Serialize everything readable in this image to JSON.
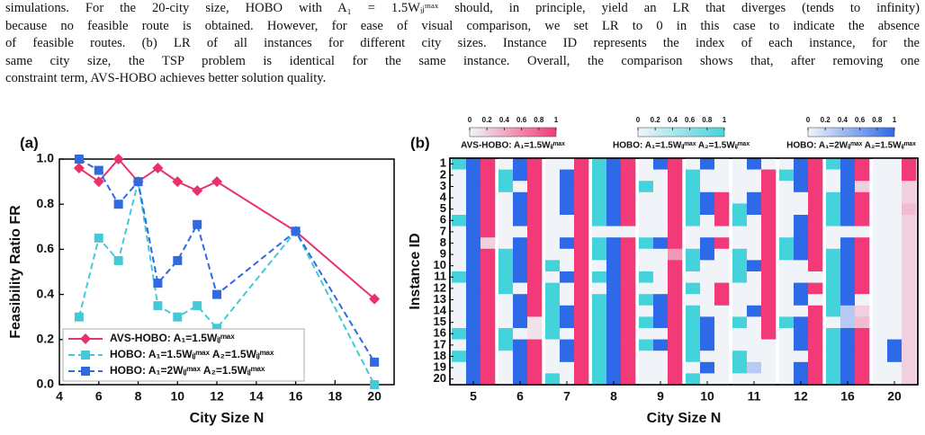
{
  "text": {
    "lines": [
      "simulations. For the 20-city size, HOBO with A₁ = 1.5Wᵢⱼᵐᵃˣ should, in principle, yield an LR that diverges (tends to infinity)",
      "because no feasible route is obtained. However, for ease of visual comparison, we set LR to 0 in this case to indicate the absence",
      "of feasible routes. (b) LR of all instances for different city sizes. Instance ID represents the index of each instance, for the",
      "same city size, the TSP problem is identical for the same instance. Overall, the comparison shows that, after removing one",
      "constraint term, AVS-HOBO achieves better solution quality."
    ]
  },
  "chart_data": [
    {
      "type": "line",
      "panel": "(a)",
      "xlabel": "City Size N",
      "ylabel": "Feasibility Ratio FR",
      "x": [
        5,
        6,
        7,
        8,
        9,
        10,
        11,
        12,
        16,
        20
      ],
      "series": [
        {
          "name": "AVS-HOBO: A₁=1.5Wᵢⱼᵐᵃˣ",
          "color": "#e8336a",
          "dashed": false,
          "marker": "diamond",
          "values": [
            0.96,
            0.9,
            1.0,
            0.9,
            0.96,
            0.9,
            0.86,
            0.9,
            0.68,
            0.38
          ]
        },
        {
          "name": "HOBO: A₁=1.5Wᵢⱼᵐᵃˣ  A₂=1.5Wᵢⱼᵐᵃˣ",
          "color": "#45c9d6",
          "dashed": true,
          "marker": "square",
          "values": [
            0.3,
            0.65,
            0.55,
            0.9,
            0.35,
            0.3,
            0.35,
            0.25,
            0.68,
            0.0
          ]
        },
        {
          "name": "HOBO: A₁=2Wᵢⱼᵐᵃˣ  A₂=1.5Wᵢⱼᵐᵃˣ",
          "color": "#2f6ae0",
          "dashed": true,
          "marker": "square",
          "values": [
            1.0,
            0.95,
            0.8,
            0.9,
            0.45,
            0.55,
            0.71,
            0.4,
            0.68,
            0.1
          ]
        }
      ],
      "xlim": [
        4,
        21
      ],
      "xticks": [
        4,
        6,
        8,
        10,
        12,
        14,
        16,
        18,
        20
      ],
      "ylim": [
        0,
        1
      ],
      "yticks": [
        {
          "value": 0,
          "label": "0.0"
        },
        0.2,
        0.4,
        0.6,
        0.8,
        {
          "value": 1,
          "label": "1.0"
        }
      ],
      "legend": "lower-left"
    },
    {
      "type": "heatmap",
      "panel": "(b)",
      "xlabel": "City Size N",
      "ylabel": "Instance ID",
      "categories": [
        5,
        6,
        7,
        8,
        9,
        10,
        11,
        12,
        16,
        20
      ],
      "rows": [
        1,
        2,
        3,
        4,
        5,
        6,
        7,
        8,
        9,
        10,
        11,
        12,
        13,
        14,
        15,
        16,
        17,
        18,
        19,
        20
      ],
      "colorbar_ticks": [
        0,
        0.2,
        0.4,
        0.6,
        0.8,
        1
      ],
      "series": [
        {
          "name": "AVS-HOBO: A₁=1.5Wᵢⱼᵐᵃˣ",
          "color": "#f23a78",
          "values": [
            [
              1,
              1,
              1,
              1,
              1,
              1,
              1,
              0.2,
              1,
              1,
              1,
              1,
              1,
              1,
              1,
              1,
              1,
              1,
              1,
              1
            ],
            [
              1,
              1,
              1,
              1,
              1,
              1,
              1,
              1,
              1,
              1,
              1,
              1,
              1,
              1,
              0.1,
              0.1,
              1,
              1,
              1,
              1
            ],
            [
              1,
              1,
              1,
              1,
              1,
              1,
              1,
              1,
              1,
              1,
              1,
              1,
              1,
              1,
              1,
              1,
              1,
              1,
              1,
              1
            ],
            [
              1,
              1,
              1,
              1,
              1,
              1,
              0,
              1,
              1,
              1,
              1,
              1,
              1,
              1,
              1,
              1,
              1,
              1,
              1,
              1
            ],
            [
              1,
              1,
              1,
              1,
              1,
              1,
              1,
              1,
              0.5,
              1,
              1,
              1,
              1,
              1,
              1,
              1,
              1,
              1,
              1,
              1
            ],
            [
              0,
              0,
              0,
              1,
              1,
              1,
              0,
              1,
              0,
              0,
              0,
              1,
              1,
              0,
              0,
              0,
              0,
              0,
              0,
              0
            ],
            [
              0,
              1,
              1,
              1,
              1,
              1,
              1,
              1,
              1,
              1,
              1,
              1,
              1,
              1,
              1,
              1,
              0,
              0,
              0,
              0
            ],
            [
              1,
              1,
              1,
              1,
              1,
              1,
              1,
              1,
              1,
              1,
              0,
              1,
              0,
              1,
              1,
              1,
              1,
              1,
              1,
              1
            ],
            [
              1,
              1,
              0.2,
              1,
              1,
              1,
              0,
              1,
              1,
              1,
              1,
              1,
              0,
              0.2,
              0.3,
              1,
              1,
              1,
              1,
              1
            ],
            [
              1,
              1,
              0.2,
              0.2,
              0.3,
              0.2,
              0.2,
              0.2,
              0.2,
              0.2,
              0.2,
              0.2,
              0.2,
              0.2,
              0.2,
              0.2,
              0.2,
              0.2,
              0.2,
              0.2
            ]
          ]
        },
        {
          "name": "HOBO: A₁=1.5Wᵢⱼᵐᵃˣ  A₂=1.5Wᵢⱼᵐᵃˣ",
          "color": "#45d3db",
          "values": [
            [
              1,
              0,
              0,
              0,
              0,
              1,
              0,
              0,
              0,
              0,
              1,
              0,
              0,
              0,
              0,
              1,
              0,
              1,
              0,
              0
            ],
            [
              0,
              1,
              1,
              0,
              0,
              0,
              0,
              0,
              1,
              1,
              1,
              1,
              0,
              0,
              0,
              1,
              1,
              0,
              0,
              0
            ],
            [
              0,
              0,
              0,
              0,
              0,
              0,
              0,
              0,
              0,
              1,
              0,
              1,
              1,
              1,
              1,
              1,
              0,
              0,
              0,
              1
            ],
            [
              1,
              1,
              1,
              1,
              1,
              1,
              0,
              1,
              1,
              0,
              1,
              0,
              1,
              1,
              1,
              1,
              1,
              1,
              1,
              1
            ],
            [
              0,
              0,
              1,
              0,
              0,
              0,
              0,
              1,
              0,
              0,
              1,
              0,
              1,
              0,
              1,
              0,
              1,
              0,
              0,
              0
            ],
            [
              0,
              1,
              1,
              1,
              1,
              1,
              0,
              0,
              1,
              1,
              0,
              1,
              0,
              1,
              1,
              1,
              1,
              1,
              0,
              1
            ],
            [
              0,
              0,
              0,
              0,
              1,
              1,
              0,
              0,
              1,
              1,
              1,
              0,
              0,
              0,
              1,
              0,
              0,
              1,
              1,
              0
            ],
            [
              0,
              1,
              0,
              0,
              0,
              0,
              0,
              1,
              1,
              0,
              0,
              0,
              0,
              0,
              1,
              0,
              0,
              0,
              0,
              0
            ],
            [
              1,
              0,
              0,
              1,
              1,
              1,
              0,
              0,
              1,
              1,
              1,
              1,
              1,
              1,
              0,
              1,
              1,
              1,
              1,
              1
            ],
            [
              0,
              0,
              0,
              0,
              0,
              0,
              0,
              0,
              0,
              0,
              0,
              0,
              0,
              0,
              0,
              0,
              0,
              0,
              0,
              0
            ]
          ]
        },
        {
          "name": "HOBO: A₁=2Wᵢⱼᵐᵃˣ  A₂=1.5Wᵢⱼᵐᵃˣ",
          "color": "#2e69e8",
          "values": [
            [
              1,
              1,
              1,
              1,
              1,
              1,
              1,
              1,
              1,
              1,
              1,
              1,
              1,
              1,
              1,
              1,
              1,
              1,
              1,
              1
            ],
            [
              1,
              1,
              0,
              1,
              1,
              1,
              0,
              1,
              1,
              1,
              1,
              0,
              1,
              1,
              1,
              0,
              1,
              1,
              1,
              1
            ],
            [
              0,
              1,
              1,
              1,
              1,
              0,
              0,
              1,
              0,
              0,
              1,
              0,
              0,
              1,
              1,
              0,
              1,
              1,
              0,
              0
            ],
            [
              1,
              1,
              1,
              1,
              1,
              1,
              0,
              1,
              1,
              1,
              1,
              1,
              1,
              1,
              1,
              1,
              1,
              1,
              1,
              1
            ],
            [
              1,
              0,
              0,
              0,
              0,
              0,
              0,
              1,
              0,
              0,
              0,
              0,
              1,
              1,
              1,
              0,
              1,
              0,
              0,
              0
            ],
            [
              1,
              0,
              0,
              1,
              1,
              0,
              0,
              1,
              1,
              0,
              0,
              0,
              0,
              0,
              1,
              1,
              1,
              0,
              1,
              0
            ],
            [
              1,
              0,
              0,
              1,
              1,
              0,
              0,
              0,
              0,
              1,
              0,
              0,
              0,
              1,
              0,
              0,
              0,
              0,
              0.3,
              0
            ],
            [
              1,
              1,
              1,
              0,
              0,
              1,
              1,
              1,
              1,
              0,
              0,
              1,
              1,
              0,
              1,
              1,
              1,
              0,
              1,
              1
            ],
            [
              1,
              1,
              1,
              1,
              1,
              1,
              0,
              1,
              1,
              1,
              1,
              1,
              1,
              0.3,
              0.3,
              1,
              1,
              1,
              1,
              1
            ],
            [
              0,
              0,
              0,
              0,
              0,
              0,
              0,
              0,
              0,
              0,
              0,
              0,
              0,
              0,
              0,
              0,
              1,
              1,
              0,
              0
            ]
          ]
        }
      ]
    }
  ]
}
